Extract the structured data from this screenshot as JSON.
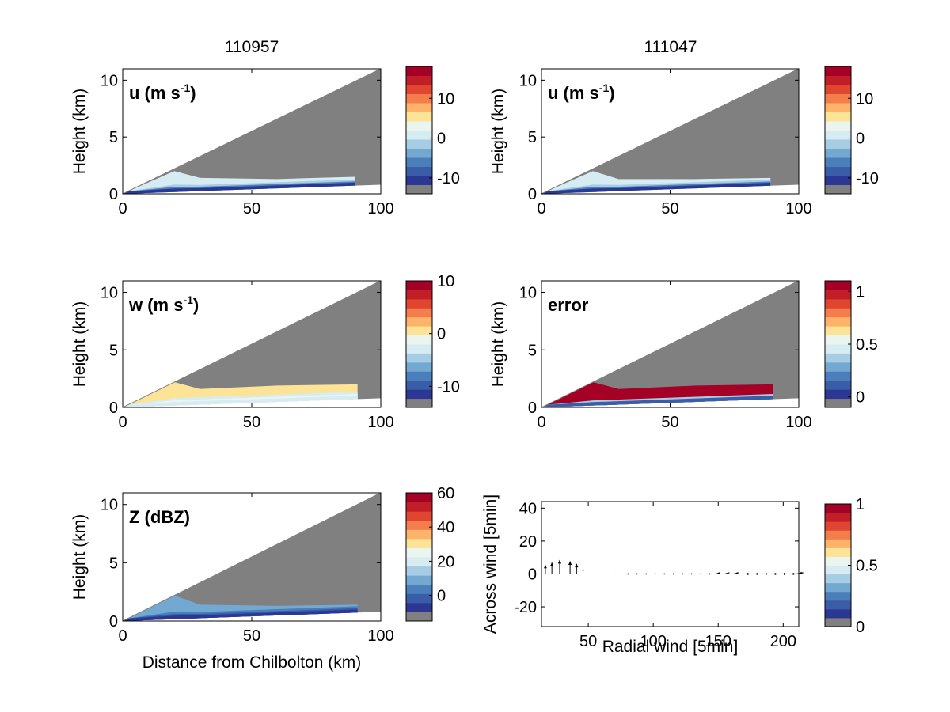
{
  "column_titles": [
    "110957",
    "111047"
  ],
  "colors": {
    "missing": "#808080",
    "panel_bg": "#ffffff",
    "palette": [
      "#2b3792",
      "#3a5da8",
      "#4a7fbc",
      "#73a8d1",
      "#a6cde4",
      "#d6ebf2",
      "#ebf5f0",
      "#fde396",
      "#fdb36a",
      "#f47e4b",
      "#e04530",
      "#c21e28",
      "#a50026"
    ]
  },
  "chart_data": [
    {
      "id": "u-110957",
      "type": "heatmap",
      "title": "u (m s-1)",
      "title_main": "u (m s",
      "title_sup": "-1",
      "title_end": ")",
      "xlabel": "",
      "ylabel": "Height (km)",
      "xlim": [
        0,
        100
      ],
      "ylim": [
        0,
        11
      ],
      "xticks": [
        0,
        50,
        100
      ],
      "yticks": [
        0,
        5,
        10
      ],
      "colorbar": {
        "range": [
          -14,
          18
        ],
        "ticks": [
          -10,
          0,
          10
        ]
      },
      "echo": {
        "xmax": 90,
        "top": [
          1.3,
          2.0,
          1.4,
          1.3,
          1.5
        ],
        "band_colors": [
          "#2b3792",
          "#4a7fbc",
          "#a6cde4",
          "#d6ebf2"
        ]
      }
    },
    {
      "id": "u-111047",
      "type": "heatmap",
      "title": "u (m s-1)",
      "title_main": "u (m s",
      "title_sup": "-1",
      "title_end": ")",
      "xlabel": "",
      "ylabel": "Height (km)",
      "xlim": [
        0,
        100
      ],
      "ylim": [
        0,
        11
      ],
      "xticks": [
        0,
        50,
        100
      ],
      "yticks": [
        0,
        5,
        10
      ],
      "colorbar": {
        "range": [
          -14,
          18
        ],
        "ticks": [
          -10,
          0,
          10
        ]
      },
      "echo": {
        "xmax": 89,
        "top": [
          1.3,
          2.0,
          1.3,
          1.3,
          1.4
        ],
        "band_colors": [
          "#2b3792",
          "#4a7fbc",
          "#a6cde4",
          "#d6ebf2"
        ]
      }
    },
    {
      "id": "w-110957",
      "type": "heatmap",
      "title": "w (m s-1)",
      "title_main": "w (m s",
      "title_sup": "-1",
      "title_end": ")",
      "xlabel": "",
      "ylabel": "Height (km)",
      "xlim": [
        0,
        100
      ],
      "ylim": [
        0,
        11
      ],
      "xticks": [
        0,
        50,
        100
      ],
      "yticks": [
        0,
        5,
        10
      ],
      "colorbar": {
        "range": [
          -14,
          10
        ],
        "ticks": [
          -10,
          0,
          10
        ]
      },
      "echo": {
        "xmax": 91,
        "top": [
          2.4,
          2.6,
          1.6,
          1.9,
          2.0
        ],
        "band_colors": [
          "#d6ebf2",
          "#ebf5f0",
          "#d6ebf2",
          "#fde396"
        ]
      }
    },
    {
      "id": "error-111047",
      "type": "heatmap",
      "title": "error",
      "title_main": "error",
      "title_sup": "",
      "title_end": "",
      "xlabel": "",
      "ylabel": "Height (km)",
      "xlim": [
        0,
        100
      ],
      "ylim": [
        0,
        11
      ],
      "xticks": [
        0,
        50,
        100
      ],
      "yticks": [
        0,
        5,
        10
      ],
      "colorbar": {
        "range": [
          -0.1,
          1.1
        ],
        "ticks": [
          0,
          0.5,
          1
        ]
      },
      "echo": {
        "xmax": 90,
        "top": [
          2.2,
          2.6,
          1.6,
          1.9,
          2.0
        ],
        "band_colors": [
          "#3a5da8",
          "#a6cde4",
          "#a50026",
          "#a50026"
        ]
      }
    },
    {
      "id": "z-110957",
      "type": "heatmap",
      "title": "Z (dBZ)",
      "title_main": "Z (dBZ)",
      "title_sup": "",
      "title_end": "",
      "xlabel": "Distance from Chilbolton (km)",
      "ylabel": "Height (km)",
      "xlim": [
        0,
        100
      ],
      "ylim": [
        0,
        11
      ],
      "xticks": [
        0,
        50,
        100
      ],
      "yticks": [
        0,
        5,
        10
      ],
      "colorbar": {
        "range": [
          -15,
          60
        ],
        "ticks": [
          0,
          20,
          40,
          60
        ]
      },
      "echo": {
        "xmax": 91,
        "top": [
          2.0,
          2.6,
          1.4,
          1.3,
          1.4
        ],
        "band_colors": [
          "#2b3792",
          "#3a5da8",
          "#4a7fbc",
          "#73a8d1"
        ]
      }
    },
    {
      "id": "wind-vectors",
      "type": "scatter",
      "title": "",
      "xlabel": "Radial wind [5min]",
      "ylabel": "Across wind [5min]",
      "xlim": [
        14,
        212
      ],
      "ylim": [
        -32,
        44
      ],
      "xticks": [
        50,
        100,
        150,
        200
      ],
      "yticks": [
        -20,
        0,
        20,
        40
      ],
      "colorbar": {
        "range": [
          0,
          1
        ],
        "ticks": [
          0,
          0.5,
          1
        ]
      },
      "vectors": [
        {
          "x": 17,
          "y": 0,
          "dx": 0,
          "dy": 7
        },
        {
          "x": 22,
          "y": 0,
          "dx": 0,
          "dy": 9
        },
        {
          "x": 28,
          "y": 0,
          "dx": 0,
          "dy": 11
        },
        {
          "x": 36,
          "y": 0,
          "dx": 0,
          "dy": 10
        },
        {
          "x": 41,
          "y": 0,
          "dx": 0,
          "dy": 8
        },
        {
          "x": 46,
          "y": 0,
          "dx": 0,
          "dy": 4
        },
        {
          "x": 62,
          "y": 0,
          "dx": 1,
          "dy": 0
        },
        {
          "x": 70,
          "y": 0,
          "dx": 1,
          "dy": 0
        },
        {
          "x": 78,
          "y": 0,
          "dx": 2,
          "dy": 0
        },
        {
          "x": 85,
          "y": 0,
          "dx": 2,
          "dy": 0
        },
        {
          "x": 92,
          "y": 0,
          "dx": 2,
          "dy": 0
        },
        {
          "x": 99,
          "y": 0,
          "dx": 2,
          "dy": 0
        },
        {
          "x": 106,
          "y": 0,
          "dx": 2,
          "dy": 0
        },
        {
          "x": 113,
          "y": 0,
          "dx": 2,
          "dy": 0
        },
        {
          "x": 120,
          "y": 0,
          "dx": 2,
          "dy": 0
        },
        {
          "x": 127,
          "y": 0,
          "dx": 2,
          "dy": 0
        },
        {
          "x": 134,
          "y": 0,
          "dx": 2,
          "dy": 0
        },
        {
          "x": 141,
          "y": 0,
          "dx": 2,
          "dy": 0
        },
        {
          "x": 148,
          "y": 0,
          "dx": 2,
          "dy": 1
        },
        {
          "x": 155,
          "y": 0,
          "dx": 2,
          "dy": 1
        },
        {
          "x": 162,
          "y": 0,
          "dx": 2,
          "dy": 1
        },
        {
          "x": 169,
          "y": 0,
          "dx": 3,
          "dy": 0
        },
        {
          "x": 176,
          "y": 0,
          "dx": 3,
          "dy": 0
        },
        {
          "x": 183,
          "y": 0,
          "dx": 3,
          "dy": 0
        },
        {
          "x": 190,
          "y": 0,
          "dx": 3,
          "dy": 0
        },
        {
          "x": 197,
          "y": 0,
          "dx": 3,
          "dy": 0
        },
        {
          "x": 204,
          "y": 0,
          "dx": 3,
          "dy": 0
        },
        {
          "x": 210,
          "y": 0,
          "dx": 3,
          "dy": 1
        }
      ]
    }
  ]
}
